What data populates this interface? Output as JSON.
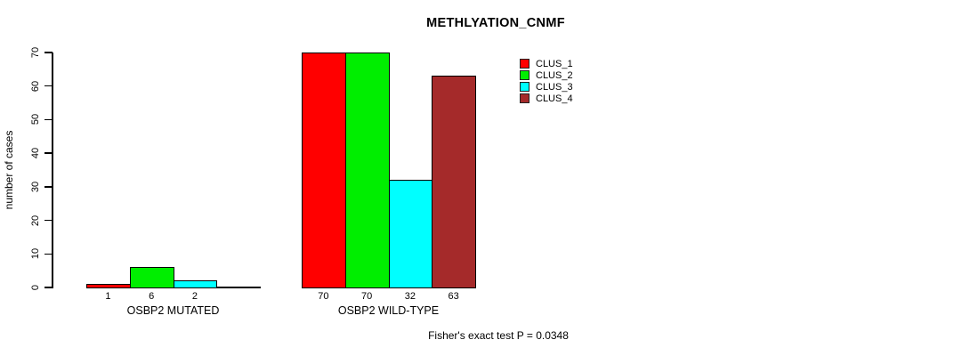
{
  "chart_data": {
    "type": "bar",
    "title": "METHLYATION_CNMF",
    "ylabel": "number of cases",
    "xlabel": "",
    "categories": [
      "OSBP2 MUTATED",
      "OSBP2 WILD-TYPE"
    ],
    "series": [
      {
        "name": "CLUS_1",
        "color": "#FF0000",
        "values": [
          1,
          70
        ]
      },
      {
        "name": "CLUS_2",
        "color": "#00EE00",
        "values": [
          6,
          70
        ]
      },
      {
        "name": "CLUS_3",
        "color": "#00FFFF",
        "values": [
          2,
          32
        ]
      },
      {
        "name": "CLUS_4",
        "color": "#A52A2A",
        "values": [
          0,
          63
        ]
      }
    ],
    "ylim": [
      0,
      70
    ],
    "yticks": [
      0,
      10,
      20,
      30,
      40,
      50,
      60,
      70
    ],
    "grid": false,
    "legend_position": "top-right",
    "bar_value_labels_shown": true,
    "annotation": "Fisher's exact test P = 0.0348"
  }
}
